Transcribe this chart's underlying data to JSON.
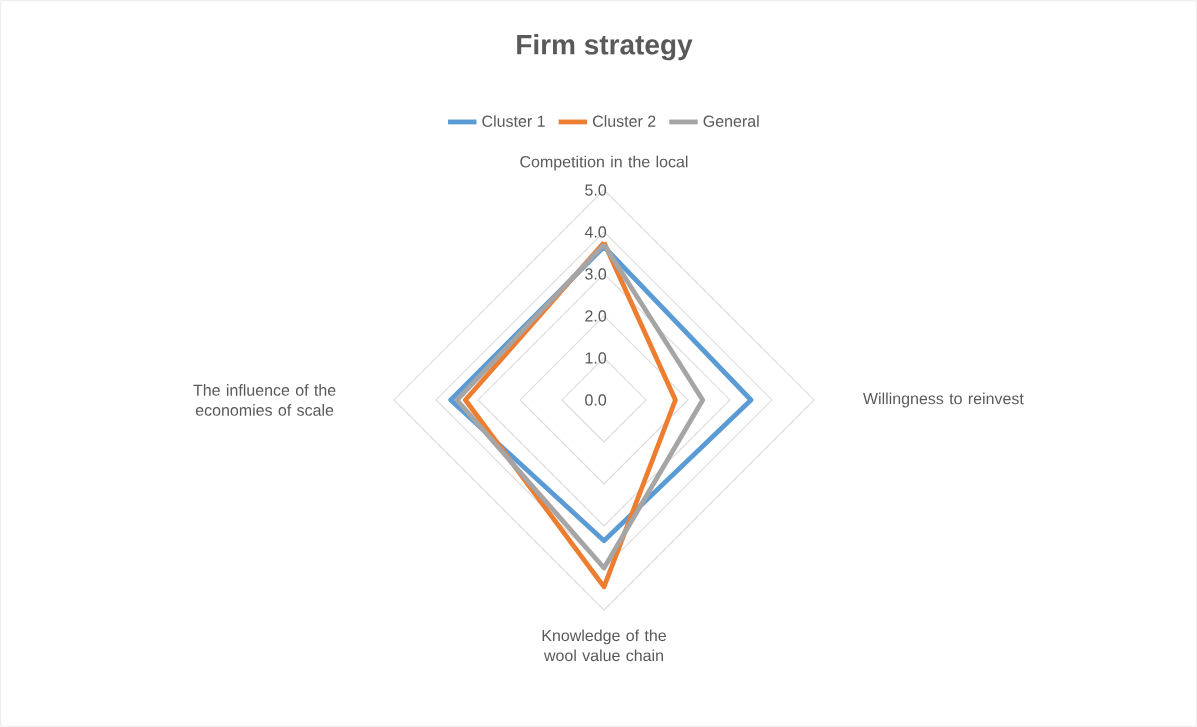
{
  "chart_data": {
    "type": "radar",
    "title": "Firm strategy",
    "categories": [
      "Competition in the local",
      "Willingness to reinvest",
      "Knowledge of the wool value chain",
      "The influence of the economies of scale"
    ],
    "series": [
      {
        "name": "Cluster 1",
        "color": "#5b9bd5",
        "values": [
          3.65,
          3.5,
          3.35,
          3.65
        ]
      },
      {
        "name": "Cluster 2",
        "color": "#ed7d31",
        "values": [
          3.75,
          1.7,
          4.45,
          3.3
        ]
      },
      {
        "name": "General",
        "color": "#a5a5a5",
        "values": [
          3.7,
          2.35,
          4.0,
          3.5
        ]
      }
    ],
    "ylim": [
      0,
      5
    ],
    "yticks": [
      {
        "value": 0,
        "label": "0.0"
      },
      {
        "value": 1,
        "label": "1.0"
      },
      {
        "value": 2,
        "label": "2.0"
      },
      {
        "value": 3,
        "label": "3.0"
      },
      {
        "value": 4,
        "label": "4.0"
      },
      {
        "value": 5,
        "label": "5.0"
      }
    ],
    "grid": true,
    "legend": "top"
  }
}
